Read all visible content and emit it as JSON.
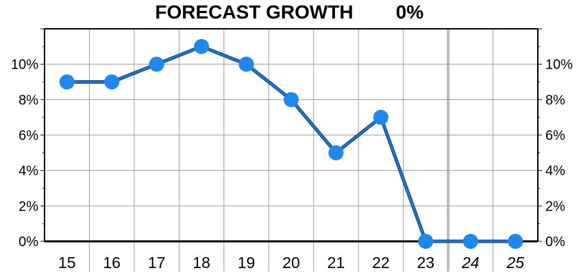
{
  "chart_data": {
    "type": "line",
    "title": "FORECAST GROWTH",
    "title_value": "0%",
    "categories": [
      "15",
      "16",
      "17",
      "18",
      "19",
      "20",
      "21",
      "22",
      "23",
      "24",
      "25"
    ],
    "forecast_categories": [
      "24",
      "25"
    ],
    "series": [
      {
        "values": [
          9,
          9,
          10,
          11,
          10,
          8,
          5,
          7,
          0,
          0,
          0
        ]
      }
    ],
    "ylim": [
      0,
      12
    ],
    "yticks": [
      0,
      2,
      4,
      6,
      8,
      10
    ],
    "ytick_labels": [
      "0%",
      "2%",
      "4%",
      "6%",
      "8%",
      "10%"
    ],
    "grid": true,
    "colors": {
      "line": "#1E74D0",
      "marker": "#1E88F0",
      "title_value": "#FF0000",
      "grid": "#999999",
      "forecast_divider": "#BBBBBB"
    }
  }
}
